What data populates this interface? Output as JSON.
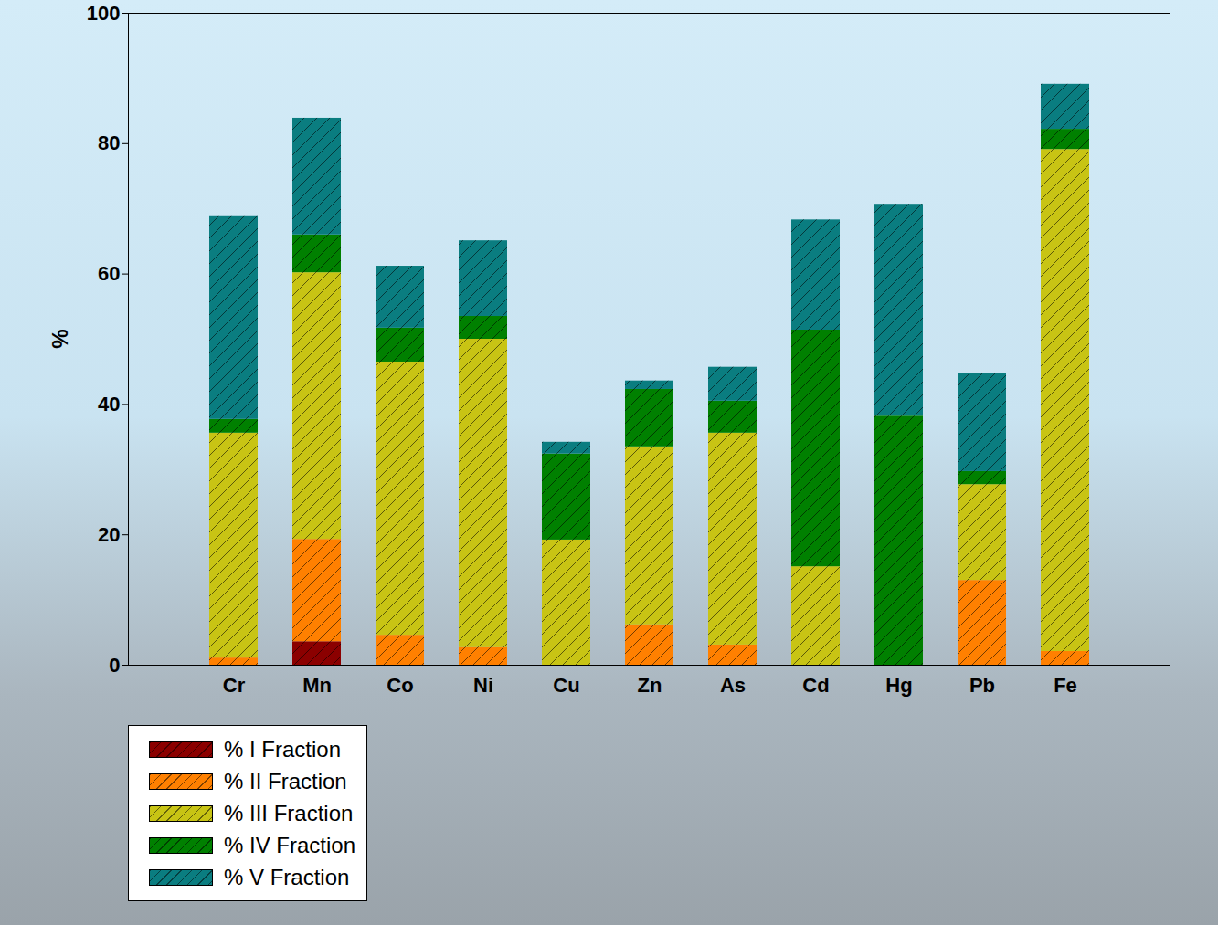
{
  "chart_data": {
    "type": "bar",
    "stacked": true,
    "y_label": "%",
    "categories": [
      "Cr",
      "Mn",
      "Co",
      "Ni",
      "Cu",
      "Zn",
      "As",
      "Cd",
      "Hg",
      "Pb",
      "Fe"
    ],
    "series": [
      {
        "name": "% I Fraction",
        "color": "#8b0000",
        "values": [
          0,
          3.6,
          0,
          0,
          0,
          0,
          0,
          0,
          0,
          0,
          0
        ]
      },
      {
        "name": "% II Fraction",
        "color": "#ff8000",
        "values": [
          1.1,
          15.7,
          4.6,
          2.7,
          0,
          6.2,
          3.1,
          0,
          0,
          13.0,
          2.1
        ]
      },
      {
        "name": "% III Fraction",
        "color": "#c8c414",
        "values": [
          34.5,
          40.9,
          41.9,
          47.3,
          19.2,
          27.3,
          32.5,
          15.1,
          0,
          14.7,
          77.0
        ]
      },
      {
        "name": "% IV Fraction",
        "color": "#008000",
        "values": [
          2.1,
          5.8,
          5.2,
          3.5,
          13.2,
          8.8,
          4.9,
          36.3,
          38.2,
          2.0,
          3.1
        ]
      },
      {
        "name": "% V Fraction",
        "color": "#0a7d80",
        "values": [
          31.1,
          17.9,
          9.5,
          11.6,
          1.8,
          1.3,
          5.2,
          16.9,
          32.5,
          15.1,
          6.9
        ]
      }
    ],
    "ylim": [
      0,
      100
    ],
    "yticks": [
      0,
      20,
      40,
      60,
      80,
      100
    ],
    "grid": false,
    "legend": "bottom-left"
  }
}
